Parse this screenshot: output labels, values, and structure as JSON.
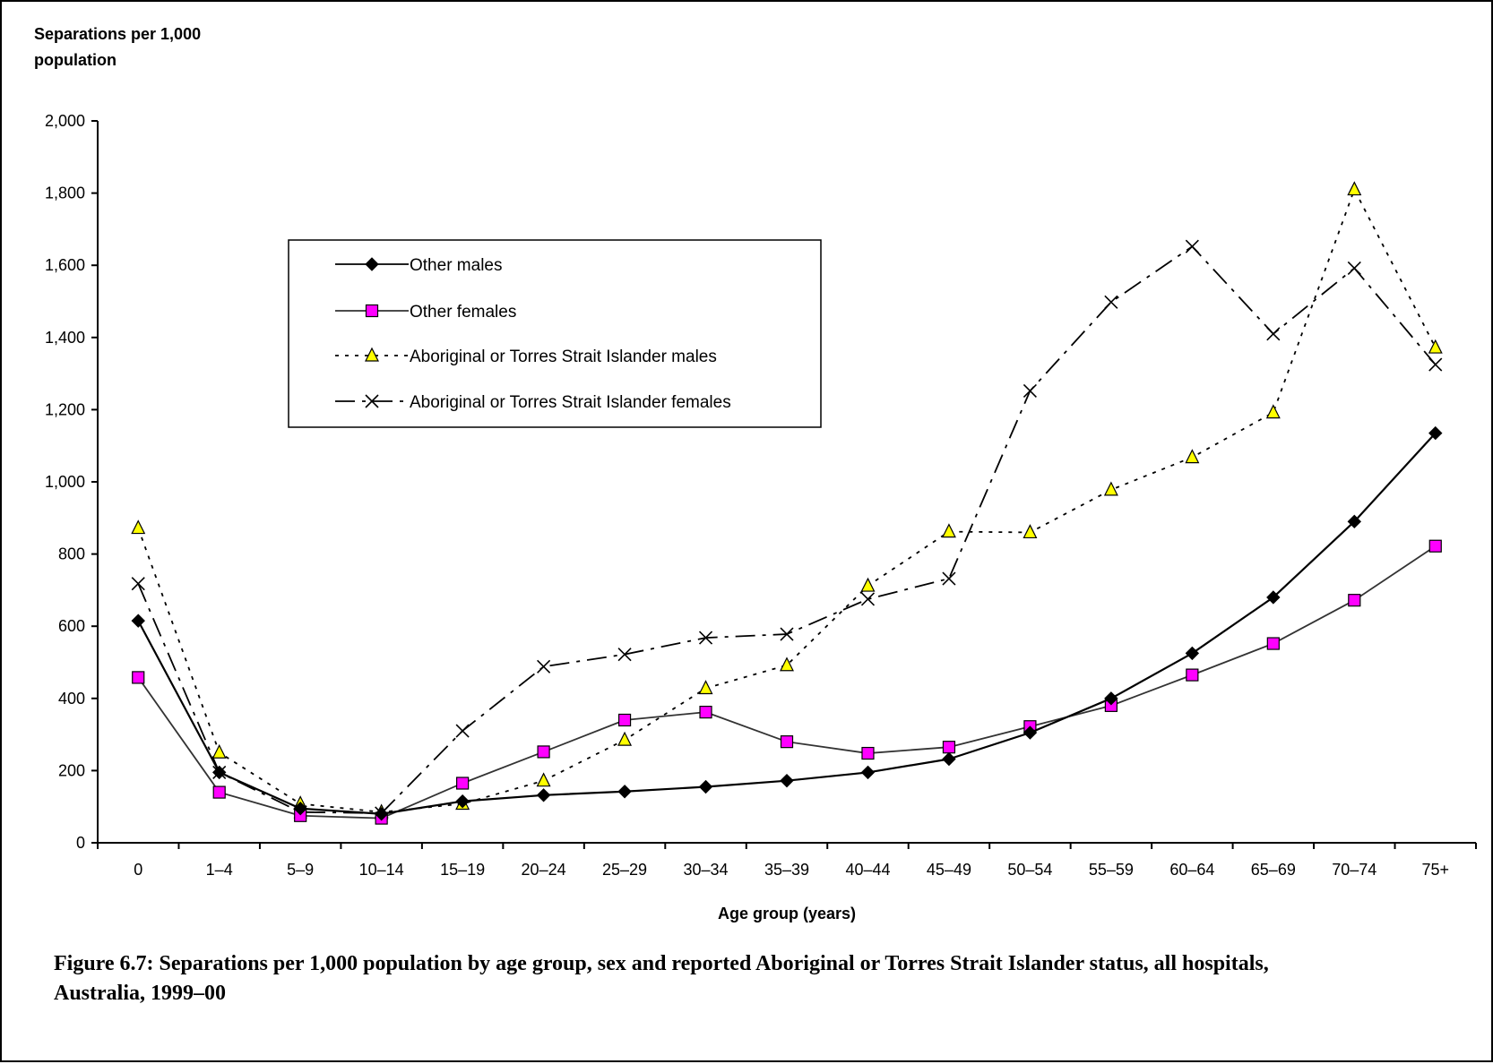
{
  "caption": "Figure 6.7: Separations per 1,000 population by age group, sex and reported Aboriginal or Torres Strait Islander status, all hospitals, Australia, 1999–00",
  "chart_data": {
    "type": "line",
    "title": "",
    "ylabel_lines": [
      "Separations per 1,000",
      "population"
    ],
    "xlabel": "Age group (years)",
    "ylim": [
      0,
      2000
    ],
    "yticks": [
      0,
      200,
      400,
      600,
      800,
      1000,
      1200,
      1400,
      1600,
      1800,
      2000
    ],
    "ytick_labels": [
      "0",
      "200",
      "400",
      "600",
      "800",
      "1,000",
      "1,200",
      "1,400",
      "1,600",
      "1,800",
      "2,000"
    ],
    "grid": false,
    "legend_position": "upper-left inside plot",
    "categories": [
      "0",
      "1–4",
      "5–9",
      "10–14",
      "15–19",
      "20–24",
      "25–29",
      "30–34",
      "35–39",
      "40–44",
      "45–49",
      "50–54",
      "55–59",
      "60–64",
      "65–69",
      "70–74",
      "75+"
    ],
    "series": [
      {
        "name": "Other males",
        "marker": "diamond",
        "line_style": "solid",
        "color": "#000000",
        "marker_fill": "#000000",
        "values": [
          615,
          195,
          95,
          80,
          115,
          132,
          142,
          155,
          172,
          195,
          232,
          305,
          400,
          525,
          680,
          890,
          1135
        ]
      },
      {
        "name": "Other females",
        "marker": "square",
        "line_style": "solid",
        "color": "#333333",
        "marker_fill": "#ff00ff",
        "values": [
          458,
          140,
          75,
          68,
          165,
          252,
          340,
          362,
          280,
          248,
          265,
          322,
          380,
          465,
          552,
          672,
          822
        ]
      },
      {
        "name": "Aboriginal or Torres Strait Islander males",
        "marker": "triangle",
        "line_style": "dotted",
        "color": "#000000",
        "marker_fill": "#ffff00",
        "values": [
          872,
          250,
          108,
          85,
          108,
          172,
          285,
          428,
          492,
          712,
          862,
          860,
          978,
          1068,
          1192,
          1810,
          1372
        ]
      },
      {
        "name": "Aboriginal or Torres Strait Islander females",
        "marker": "x",
        "line_style": "dashdot",
        "color": "#000000",
        "marker_fill": "none",
        "values": [
          718,
          195,
          85,
          82,
          310,
          488,
          522,
          568,
          578,
          675,
          732,
          1252,
          1498,
          1652,
          1410,
          1592,
          1325
        ]
      }
    ]
  }
}
